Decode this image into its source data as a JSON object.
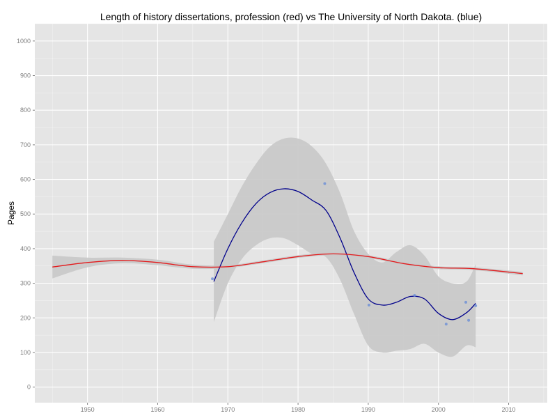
{
  "chart_data": {
    "type": "scatter",
    "title": "Length of history dissertations, profession (red) vs The University of North Dakota. (blue)",
    "xlabel": "",
    "ylabel": "Pages",
    "xlim": [
      1942.5,
      2015.5
    ],
    "ylim": [
      -45,
      1050
    ],
    "x_ticks": [
      1950,
      1960,
      1970,
      1980,
      1990,
      2000,
      2010
    ],
    "y_ticks": [
      0,
      100,
      200,
      300,
      400,
      500,
      600,
      700,
      800,
      900,
      1000
    ],
    "grid": true,
    "colors": {
      "panel": "#e5e5e5",
      "grid": "#ffffff",
      "ribbon": "#c8c8c8",
      "profession": "#e31a1c",
      "und_line": "#00008b",
      "und_points": "#6b8fd6"
    },
    "series": [
      {
        "kind": "points",
        "values": [
          {
            "x": 1967.8,
            "y": 313
          },
          {
            "x": 1983.8,
            "y": 588
          },
          {
            "x": 1990.1,
            "y": 237
          },
          {
            "x": 1996.6,
            "y": 265
          },
          {
            "x": 2001.1,
            "y": 182
          },
          {
            "x": 2003.9,
            "y": 245
          },
          {
            "x": 2004.3,
            "y": 193
          },
          {
            "x": 2005.3,
            "y": 235
          }
        ]
      },
      {
        "kind": "smooth",
        "values": [
          {
            "x": 1968,
            "y": 305
          },
          {
            "x": 1970,
            "y": 400
          },
          {
            "x": 1972,
            "y": 475
          },
          {
            "x": 1974,
            "y": 530
          },
          {
            "x": 1976,
            "y": 562
          },
          {
            "x": 1978,
            "y": 573
          },
          {
            "x": 1980,
            "y": 565
          },
          {
            "x": 1982,
            "y": 540
          },
          {
            "x": 1984,
            "y": 510
          },
          {
            "x": 1986,
            "y": 430
          },
          {
            "x": 1988,
            "y": 330
          },
          {
            "x": 1990,
            "y": 255
          },
          {
            "x": 1992,
            "y": 237
          },
          {
            "x": 1994,
            "y": 245
          },
          {
            "x": 1996,
            "y": 262
          },
          {
            "x": 1998,
            "y": 255
          },
          {
            "x": 2000,
            "y": 213
          },
          {
            "x": 2002,
            "y": 195
          },
          {
            "x": 2004,
            "y": 215
          },
          {
            "x": 2005.3,
            "y": 242
          }
        ],
        "ribbon_upper": [
          {
            "x": 1968,
            "y": 420
          },
          {
            "x": 1970,
            "y": 500
          },
          {
            "x": 1972,
            "y": 580
          },
          {
            "x": 1974,
            "y": 645
          },
          {
            "x": 1976,
            "y": 695
          },
          {
            "x": 1978,
            "y": 718
          },
          {
            "x": 1980,
            "y": 718
          },
          {
            "x": 1982,
            "y": 695
          },
          {
            "x": 1984,
            "y": 645
          },
          {
            "x": 1986,
            "y": 560
          },
          {
            "x": 1988,
            "y": 450
          },
          {
            "x": 1990,
            "y": 385
          },
          {
            "x": 1992,
            "y": 360
          },
          {
            "x": 1994,
            "y": 390
          },
          {
            "x": 1996,
            "y": 410
          },
          {
            "x": 1998,
            "y": 380
          },
          {
            "x": 2000,
            "y": 320
          },
          {
            "x": 2002,
            "y": 300
          },
          {
            "x": 2004,
            "y": 305
          },
          {
            "x": 2005.3,
            "y": 355
          }
        ],
        "ribbon_lower": [
          {
            "x": 1968,
            "y": 188
          },
          {
            "x": 1970,
            "y": 300
          },
          {
            "x": 1972,
            "y": 370
          },
          {
            "x": 1974,
            "y": 410
          },
          {
            "x": 1976,
            "y": 430
          },
          {
            "x": 1978,
            "y": 430
          },
          {
            "x": 1980,
            "y": 410
          },
          {
            "x": 1982,
            "y": 385
          },
          {
            "x": 1984,
            "y": 375
          },
          {
            "x": 1986,
            "y": 310
          },
          {
            "x": 1988,
            "y": 210
          },
          {
            "x": 1990,
            "y": 120
          },
          {
            "x": 1992,
            "y": 100
          },
          {
            "x": 1994,
            "y": 105
          },
          {
            "x": 1996,
            "y": 110
          },
          {
            "x": 1998,
            "y": 125
          },
          {
            "x": 2000,
            "y": 100
          },
          {
            "x": 2002,
            "y": 88
          },
          {
            "x": 2004,
            "y": 120
          },
          {
            "x": 2005.3,
            "y": 115
          }
        ]
      },
      {
        "kind": "smooth",
        "values": [
          {
            "x": 1945,
            "y": 347
          },
          {
            "x": 1950,
            "y": 360
          },
          {
            "x": 1955,
            "y": 366
          },
          {
            "x": 1960,
            "y": 360
          },
          {
            "x": 1965,
            "y": 348
          },
          {
            "x": 1970,
            "y": 348
          },
          {
            "x": 1975,
            "y": 362
          },
          {
            "x": 1980,
            "y": 377
          },
          {
            "x": 1985,
            "y": 385
          },
          {
            "x": 1990,
            "y": 377
          },
          {
            "x": 1995,
            "y": 357
          },
          {
            "x": 2000,
            "y": 345
          },
          {
            "x": 2005,
            "y": 342
          },
          {
            "x": 2012,
            "y": 328
          }
        ],
        "ribbon_upper": [
          {
            "x": 1945,
            "y": 380
          },
          {
            "x": 1950,
            "y": 374
          },
          {
            "x": 1955,
            "y": 374
          },
          {
            "x": 1960,
            "y": 368
          },
          {
            "x": 1965,
            "y": 354
          },
          {
            "x": 1970,
            "y": 352
          },
          {
            "x": 1975,
            "y": 366
          },
          {
            "x": 1980,
            "y": 381
          },
          {
            "x": 1985,
            "y": 389
          },
          {
            "x": 1990,
            "y": 381
          },
          {
            "x": 1995,
            "y": 361
          },
          {
            "x": 2000,
            "y": 349
          },
          {
            "x": 2005,
            "y": 346
          },
          {
            "x": 2012,
            "y": 333
          }
        ],
        "ribbon_lower": [
          {
            "x": 1945,
            "y": 314
          },
          {
            "x": 1950,
            "y": 346
          },
          {
            "x": 1955,
            "y": 358
          },
          {
            "x": 1960,
            "y": 352
          },
          {
            "x": 1965,
            "y": 342
          },
          {
            "x": 1970,
            "y": 344
          },
          {
            "x": 1975,
            "y": 358
          },
          {
            "x": 1980,
            "y": 373
          },
          {
            "x": 1985,
            "y": 381
          },
          {
            "x": 1990,
            "y": 373
          },
          {
            "x": 1995,
            "y": 353
          },
          {
            "x": 2000,
            "y": 341
          },
          {
            "x": 2005,
            "y": 338
          },
          {
            "x": 2012,
            "y": 323
          }
        ]
      }
    ]
  }
}
